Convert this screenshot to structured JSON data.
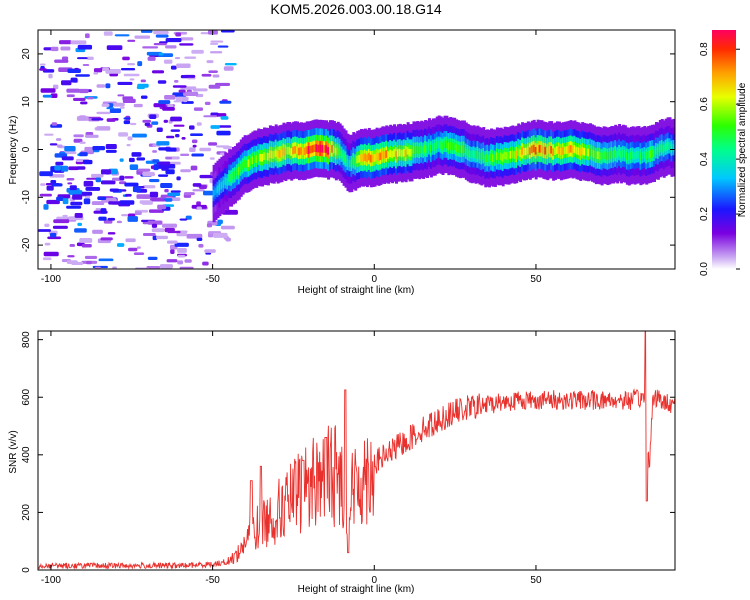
{
  "title": "KOM5.2026.003.00.18.G14",
  "colors": {
    "snr_line": "#e8302c",
    "ridge_core": "#ff0000",
    "background": "#ffffff"
  },
  "chart_data": [
    {
      "type": "heatmap",
      "name": "spectrogram",
      "xlabel": "Height of straight line (km)",
      "ylabel": "Frequency (Hz)",
      "xlim": [
        -104,
        93
      ],
      "ylim": [
        -25,
        25
      ],
      "xticks": [
        -100,
        -50,
        0,
        50
      ],
      "yticks": [
        -20,
        -10,
        0,
        10,
        20
      ],
      "colorbar": {
        "label": "Normalized spectral amplitude",
        "range": [
          0.0,
          0.87
        ],
        "ticks": [
          0.0,
          0.2,
          0.4,
          0.6,
          0.8
        ]
      },
      "ridge": {
        "description_free_note": "",
        "x": [
          -50,
          -45,
          -40,
          -35,
          -30,
          -25,
          -20,
          -15,
          -11,
          -8,
          -5,
          0,
          5,
          10,
          15,
          20,
          25,
          30,
          35,
          40,
          45,
          50,
          55,
          60,
          65,
          70,
          75,
          80,
          85,
          90,
          93
        ],
        "freq": [
          -9,
          -6,
          -3,
          -1.5,
          -0.8,
          -0.3,
          0,
          0,
          -0.3,
          -3,
          -2,
          -1.5,
          -1,
          -0.5,
          0,
          1,
          0.5,
          -1,
          -1.8,
          -1.5,
          -0.5,
          0,
          -0.3,
          0,
          -0.5,
          -1.5,
          -0.8,
          -1.5,
          -1,
          0.5,
          0.5
        ],
        "amplitude": [
          0.3,
          0.45,
          0.55,
          0.6,
          0.65,
          0.7,
          0.85,
          0.87,
          0.5,
          0.4,
          0.6,
          0.75,
          0.7,
          0.65,
          0.5,
          0.45,
          0.55,
          0.45,
          0.5,
          0.55,
          0.65,
          0.75,
          0.7,
          0.7,
          0.6,
          0.55,
          0.5,
          0.45,
          0.5,
          0.45,
          0.4
        ]
      }
    },
    {
      "type": "line",
      "name": "snr",
      "xlabel": "Height of straight line (km)",
      "ylabel": "SNR (v/v)",
      "xlim": [
        -104,
        93
      ],
      "ylim": [
        0,
        830
      ],
      "xticks": [
        -100,
        -50,
        0,
        50
      ],
      "yticks": [
        0,
        200,
        400,
        600,
        800
      ],
      "envelope_x": [
        -104,
        -60,
        -50,
        -45,
        -42,
        -38,
        -35,
        -30,
        -25,
        -20,
        -15,
        -12,
        -10,
        -8,
        -5,
        0,
        5,
        10,
        15,
        20,
        25,
        30,
        35,
        40,
        45,
        50,
        55,
        60,
        65,
        70,
        75,
        80,
        84,
        85,
        86,
        87,
        90,
        93
      ],
      "envelope_y": [
        15,
        15,
        20,
        30,
        60,
        130,
        160,
        200,
        250,
        300,
        340,
        330,
        300,
        250,
        300,
        370,
        410,
        450,
        490,
        520,
        550,
        565,
        575,
        585,
        590,
        590,
        590,
        590,
        590,
        590,
        590,
        590,
        600,
        350,
        580,
        600,
        580,
        580
      ],
      "spikes": [
        {
          "x": -38,
          "y": 310
        },
        {
          "x": -35,
          "y": 360
        },
        {
          "x": -22,
          "y": 380
        },
        {
          "x": -15,
          "y": 460
        },
        {
          "x": -9,
          "y": 625
        },
        {
          "x": -8,
          "y": 60
        },
        {
          "x": 84,
          "y": 830
        },
        {
          "x": 84.3,
          "y": 240
        }
      ]
    }
  ]
}
